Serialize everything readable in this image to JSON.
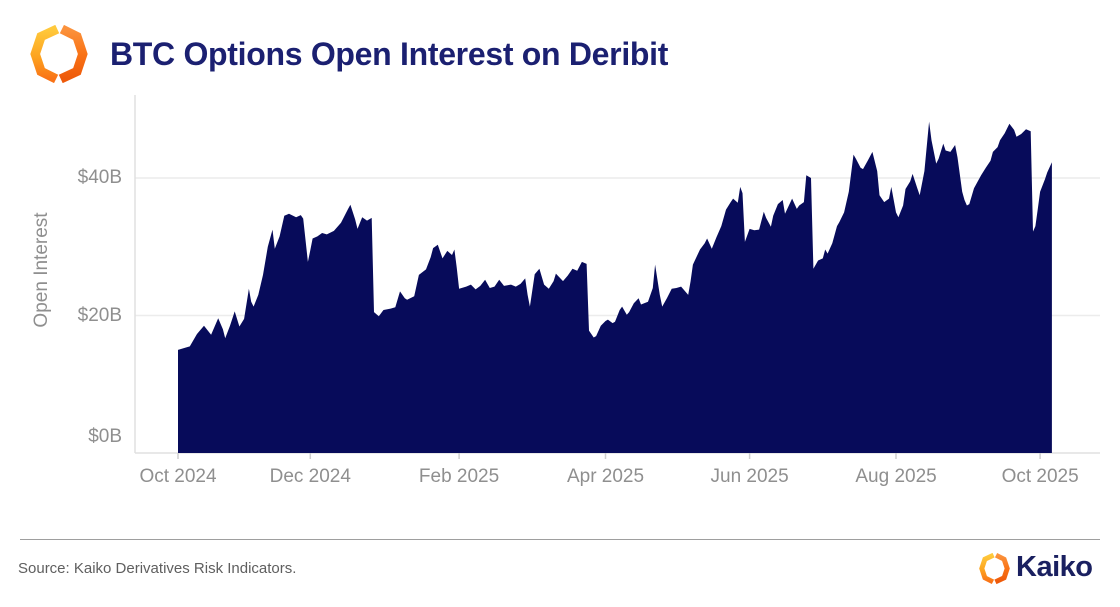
{
  "header": {
    "title": "BTC Options Open Interest on Deribit"
  },
  "footer": {
    "source": "Source: Kaiko Derivatives Risk Indicators.",
    "brand": "Kaiko"
  },
  "colors": {
    "area_fill": "#070b5a",
    "title_navy": "#1b2071",
    "axis_gray": "#8f8f8f",
    "grid_gray": "#ececec",
    "spine_gray": "#e0e0e0",
    "logo_yellow": "#FFC93C",
    "logo_orange": "#F97316",
    "logo_deep_orange": "#EE5A0A"
  },
  "chart_data": {
    "type": "area",
    "title": "BTC Options Open Interest on Deribit",
    "ylabel": "Open Interest",
    "xlabel": "",
    "unit": "USD billions",
    "ylim": [
      0,
      50
    ],
    "grid": "horizontal",
    "legend": "none",
    "x_range": [
      "Oct 2024",
      "Oct 2025"
    ],
    "x_ticks": [
      {
        "label": "Oct 2024",
        "day": 0
      },
      {
        "label": "Dec 2024",
        "day": 56
      },
      {
        "label": "Feb 2025",
        "day": 119
      },
      {
        "label": "Apr 2025",
        "day": 181
      },
      {
        "label": "Jun 2025",
        "day": 242
      },
      {
        "label": "Aug 2025",
        "day": 304
      },
      {
        "label": "Oct 2025",
        "day": 365
      }
    ],
    "y_ticks": [
      {
        "label": "$0B",
        "value": 0
      },
      {
        "label": "$20B",
        "value": 20
      },
      {
        "label": "$40B",
        "value": 40
      }
    ],
    "series": [
      {
        "name": "BTC options open interest on Deribit ($B)",
        "x_unit": "days since Oct 2024 tick",
        "points": [
          [
            0,
            15.0
          ],
          [
            3,
            15.3
          ],
          [
            5,
            15.5
          ],
          [
            8,
            17.3
          ],
          [
            9,
            17.7
          ],
          [
            11,
            18.5
          ],
          [
            14,
            17.2
          ],
          [
            17,
            19.6
          ],
          [
            19,
            18.0
          ],
          [
            20,
            16.7
          ],
          [
            22,
            18.5
          ],
          [
            24,
            20.6
          ],
          [
            26,
            18.4
          ],
          [
            28,
            19.5
          ],
          [
            30,
            23.9
          ],
          [
            31,
            22.0
          ],
          [
            32,
            21.3
          ],
          [
            34,
            23.0
          ],
          [
            36,
            25.9
          ],
          [
            38,
            30.0
          ],
          [
            40,
            32.5
          ],
          [
            41,
            29.7
          ],
          [
            43,
            31.5
          ],
          [
            45,
            34.5
          ],
          [
            47,
            34.8
          ],
          [
            50,
            34.3
          ],
          [
            52,
            34.6
          ],
          [
            53,
            34.1
          ],
          [
            55,
            27.8
          ],
          [
            56,
            29.5
          ],
          [
            57,
            31.2
          ],
          [
            59,
            31.5
          ],
          [
            61,
            32.0
          ],
          [
            63,
            31.8
          ],
          [
            66,
            32.3
          ],
          [
            69,
            33.5
          ],
          [
            72,
            35.5
          ],
          [
            73,
            36.1
          ],
          [
            75,
            34.0
          ],
          [
            76,
            32.6
          ],
          [
            78,
            34.3
          ],
          [
            80,
            33.8
          ],
          [
            82,
            34.2
          ],
          [
            83,
            20.5
          ],
          [
            85,
            19.9
          ],
          [
            87,
            20.8
          ],
          [
            90,
            21.0
          ],
          [
            92,
            21.2
          ],
          [
            94,
            23.5
          ],
          [
            96,
            22.5
          ],
          [
            97,
            22.3
          ],
          [
            100,
            22.8
          ],
          [
            102,
            25.9
          ],
          [
            105,
            26.7
          ],
          [
            107,
            28.5
          ],
          [
            108,
            29.8
          ],
          [
            110,
            30.3
          ],
          [
            112,
            28.3
          ],
          [
            114,
            29.4
          ],
          [
            116,
            28.8
          ],
          [
            117,
            29.6
          ],
          [
            118,
            27.0
          ],
          [
            119,
            23.9
          ],
          [
            122,
            24.2
          ],
          [
            124,
            24.5
          ],
          [
            126,
            23.8
          ],
          [
            128,
            24.3
          ],
          [
            130,
            25.2
          ],
          [
            132,
            24.0
          ],
          [
            134,
            24.2
          ],
          [
            136,
            25.2
          ],
          [
            138,
            24.3
          ],
          [
            141,
            24.5
          ],
          [
            143,
            24.2
          ],
          [
            145,
            24.6
          ],
          [
            147,
            25.4
          ],
          [
            148,
            23.0
          ],
          [
            149,
            21.3
          ],
          [
            151,
            26.0
          ],
          [
            153,
            26.8
          ],
          [
            155,
            24.5
          ],
          [
            157,
            23.9
          ],
          [
            159,
            25.0
          ],
          [
            160,
            26.1
          ],
          [
            163,
            25.0
          ],
          [
            165,
            25.8
          ],
          [
            167,
            26.8
          ],
          [
            169,
            26.5
          ],
          [
            171,
            27.8
          ],
          [
            173,
            27.5
          ],
          [
            174,
            17.8
          ],
          [
            176,
            16.8
          ],
          [
            177,
            17.0
          ],
          [
            179,
            18.5
          ],
          [
            181,
            19.2
          ],
          [
            182,
            19.4
          ],
          [
            184,
            18.9
          ],
          [
            185,
            19.1
          ],
          [
            187,
            20.8
          ],
          [
            188,
            21.3
          ],
          [
            190,
            20.1
          ],
          [
            191,
            20.5
          ],
          [
            193,
            21.8
          ],
          [
            195,
            22.5
          ],
          [
            196,
            21.6
          ],
          [
            199,
            22.0
          ],
          [
            201,
            24.0
          ],
          [
            202,
            27.4
          ],
          [
            204,
            23.0
          ],
          [
            205,
            21.3
          ],
          [
            207,
            22.5
          ],
          [
            209,
            23.9
          ],
          [
            211,
            24.0
          ],
          [
            213,
            24.2
          ],
          [
            216,
            23.0
          ],
          [
            217,
            25.0
          ],
          [
            218,
            27.4
          ],
          [
            221,
            29.6
          ],
          [
            223,
            30.5
          ],
          [
            224,
            31.2
          ],
          [
            226,
            29.7
          ],
          [
            228,
            31.4
          ],
          [
            230,
            33.0
          ],
          [
            232,
            35.4
          ],
          [
            234,
            36.5
          ],
          [
            235,
            37.0
          ],
          [
            237,
            36.4
          ],
          [
            238,
            38.7
          ],
          [
            239,
            37.8
          ],
          [
            240,
            30.7
          ],
          [
            242,
            32.6
          ],
          [
            244,
            32.4
          ],
          [
            246,
            32.5
          ],
          [
            248,
            35.1
          ],
          [
            249,
            34.2
          ],
          [
            251,
            32.9
          ],
          [
            252,
            34.5
          ],
          [
            254,
            36.2
          ],
          [
            256,
            36.8
          ],
          [
            257,
            34.8
          ],
          [
            260,
            37.0
          ],
          [
            262,
            35.5
          ],
          [
            263,
            36.0
          ],
          [
            265,
            36.5
          ],
          [
            266,
            40.4
          ],
          [
            268,
            40.0
          ],
          [
            269,
            26.8
          ],
          [
            271,
            28.0
          ],
          [
            273,
            28.3
          ],
          [
            274,
            29.6
          ],
          [
            275,
            29.0
          ],
          [
            277,
            30.5
          ],
          [
            279,
            33.0
          ],
          [
            280,
            33.6
          ],
          [
            282,
            35.0
          ],
          [
            284,
            38.0
          ],
          [
            286,
            43.4
          ],
          [
            287,
            42.8
          ],
          [
            289,
            41.5
          ],
          [
            290,
            41.3
          ],
          [
            292,
            42.5
          ],
          [
            294,
            43.8
          ],
          [
            296,
            41.0
          ],
          [
            297,
            37.5
          ],
          [
            299,
            36.5
          ],
          [
            301,
            37.0
          ],
          [
            302,
            38.7
          ],
          [
            304,
            35.0
          ],
          [
            305,
            34.3
          ],
          [
            307,
            36.0
          ],
          [
            308,
            38.4
          ],
          [
            310,
            39.5
          ],
          [
            311,
            40.6
          ],
          [
            313,
            38.5
          ],
          [
            314,
            37.5
          ],
          [
            316,
            41.0
          ],
          [
            318,
            48.2
          ],
          [
            319,
            45.5
          ],
          [
            321,
            42.1
          ],
          [
            322,
            42.8
          ],
          [
            324,
            45.0
          ],
          [
            325,
            44.0
          ],
          [
            327,
            43.8
          ],
          [
            329,
            44.8
          ],
          [
            330,
            43.0
          ],
          [
            332,
            38.0
          ],
          [
            333,
            36.8
          ],
          [
            334,
            36.0
          ],
          [
            335,
            36.2
          ],
          [
            337,
            38.5
          ],
          [
            340,
            40.4
          ],
          [
            342,
            41.5
          ],
          [
            344,
            42.5
          ],
          [
            345,
            43.8
          ],
          [
            347,
            44.5
          ],
          [
            348,
            45.5
          ],
          [
            350,
            46.5
          ],
          [
            352,
            47.9
          ],
          [
            354,
            47.0
          ],
          [
            355,
            46.0
          ],
          [
            357,
            46.4
          ],
          [
            359,
            47.1
          ],
          [
            361,
            46.8
          ],
          [
            362,
            32.2
          ],
          [
            363,
            33.0
          ],
          [
            364,
            35.5
          ],
          [
            365,
            38.0
          ],
          [
            367,
            39.8
          ],
          [
            368,
            40.8
          ],
          [
            370,
            42.3
          ]
        ]
      }
    ]
  }
}
